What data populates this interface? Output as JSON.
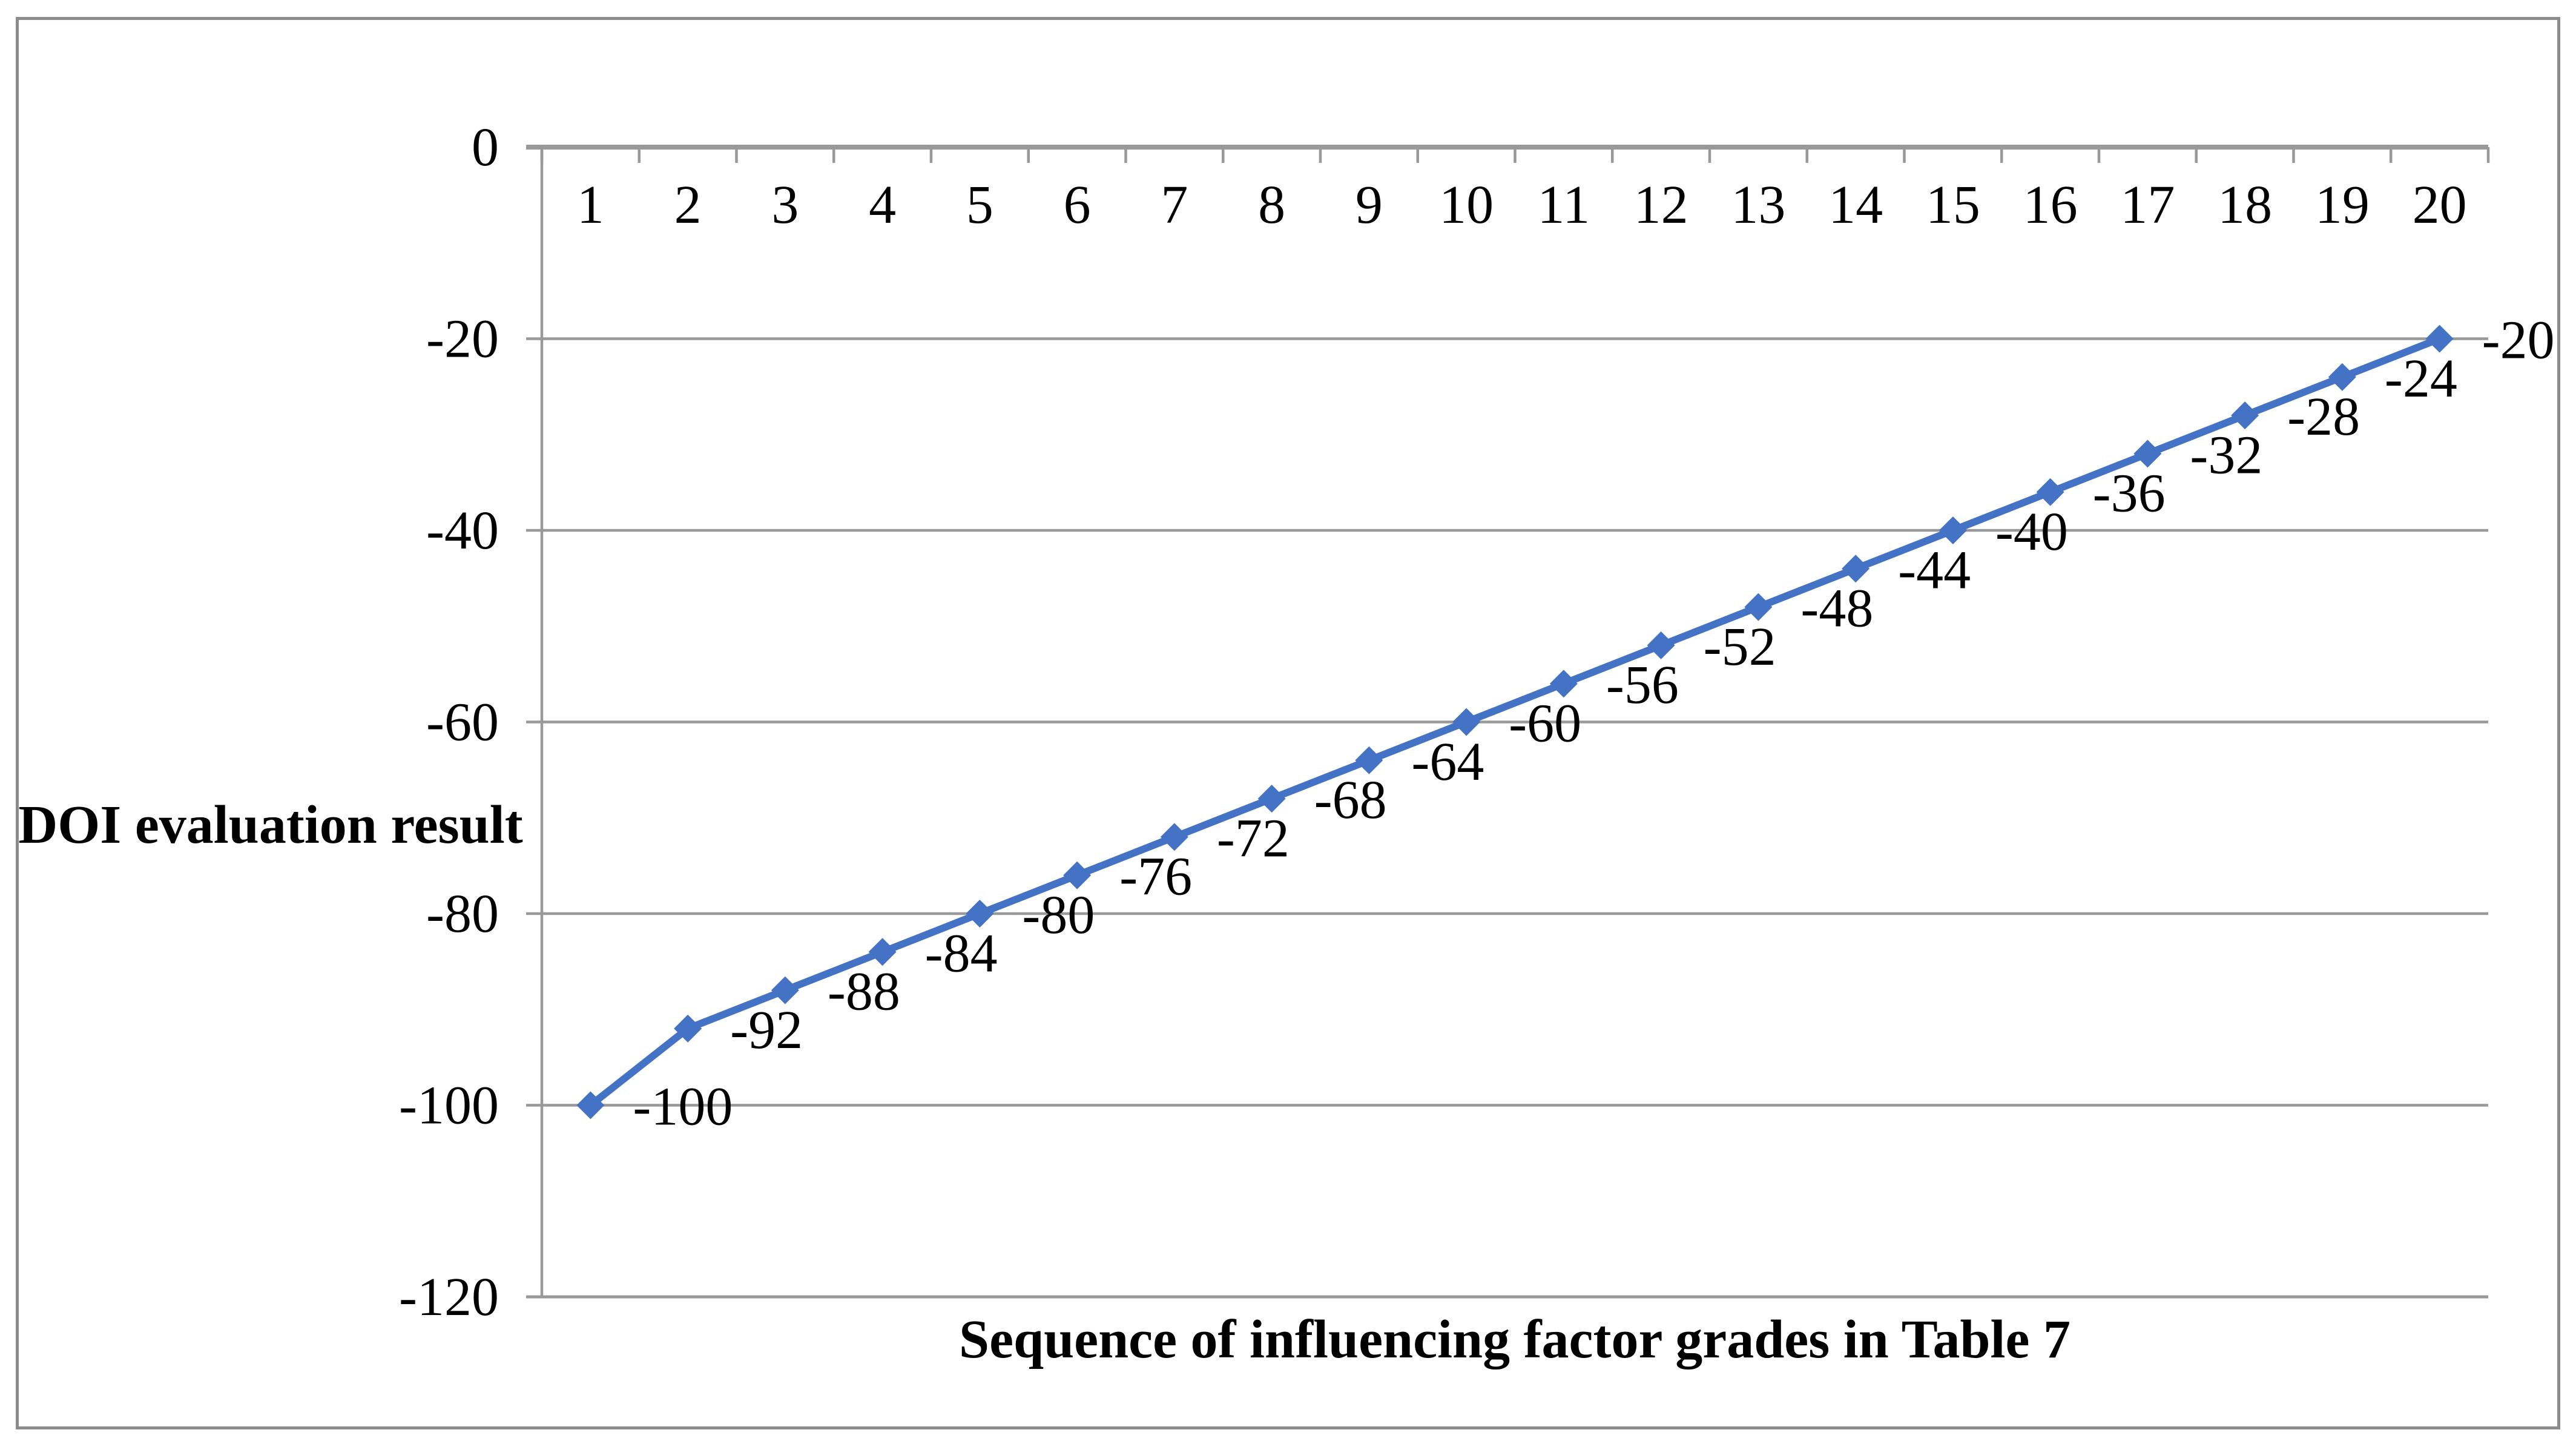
{
  "figure": {
    "background": "#FFFFFF",
    "border_color": "#8C8C8C"
  },
  "chart_data": {
    "type": "line",
    "title": "",
    "xlabel": "Sequence of influencing factor grades in Table 7",
    "ylabel": "DOI evaluation result",
    "categories": [
      1,
      2,
      3,
      4,
      5,
      6,
      7,
      8,
      9,
      10,
      11,
      12,
      13,
      14,
      15,
      16,
      17,
      18,
      19,
      20
    ],
    "x_tick_labels": [
      "1",
      "2",
      "3",
      "4",
      "5",
      "6",
      "7",
      "8",
      "9",
      "10",
      "11",
      "12",
      "13",
      "14",
      "15",
      "16",
      "17",
      "18",
      "19",
      "20"
    ],
    "values": [
      -100,
      -92,
      -88,
      -84,
      -80,
      -76,
      -72,
      -68,
      -64,
      -60,
      -56,
      -52,
      -48,
      -44,
      -40,
      -36,
      -32,
      -28,
      -24,
      -20
    ],
    "data_labels": [
      "-100",
      "-92",
      "-88",
      "-84",
      "-80",
      "-76",
      "-72",
      "-68",
      "-64",
      "-60",
      "-56",
      "-52",
      "-48",
      "-44",
      "-40",
      "-36",
      "-32",
      "-28",
      "-24",
      "-20"
    ],
    "y_ticks": [
      0,
      -20,
      -40,
      -60,
      -80,
      -100,
      -120
    ],
    "y_tick_labels": [
      "0",
      "-20",
      "-40",
      "-60",
      "-80",
      "-100",
      "-120"
    ],
    "ylim": [
      -120,
      0
    ],
    "grid": true,
    "legend": false,
    "series_name": "DOI evaluation result",
    "series_color": "#4472C4",
    "marker": "diamond",
    "axis_color": "#999999",
    "text_color": "#000000"
  }
}
